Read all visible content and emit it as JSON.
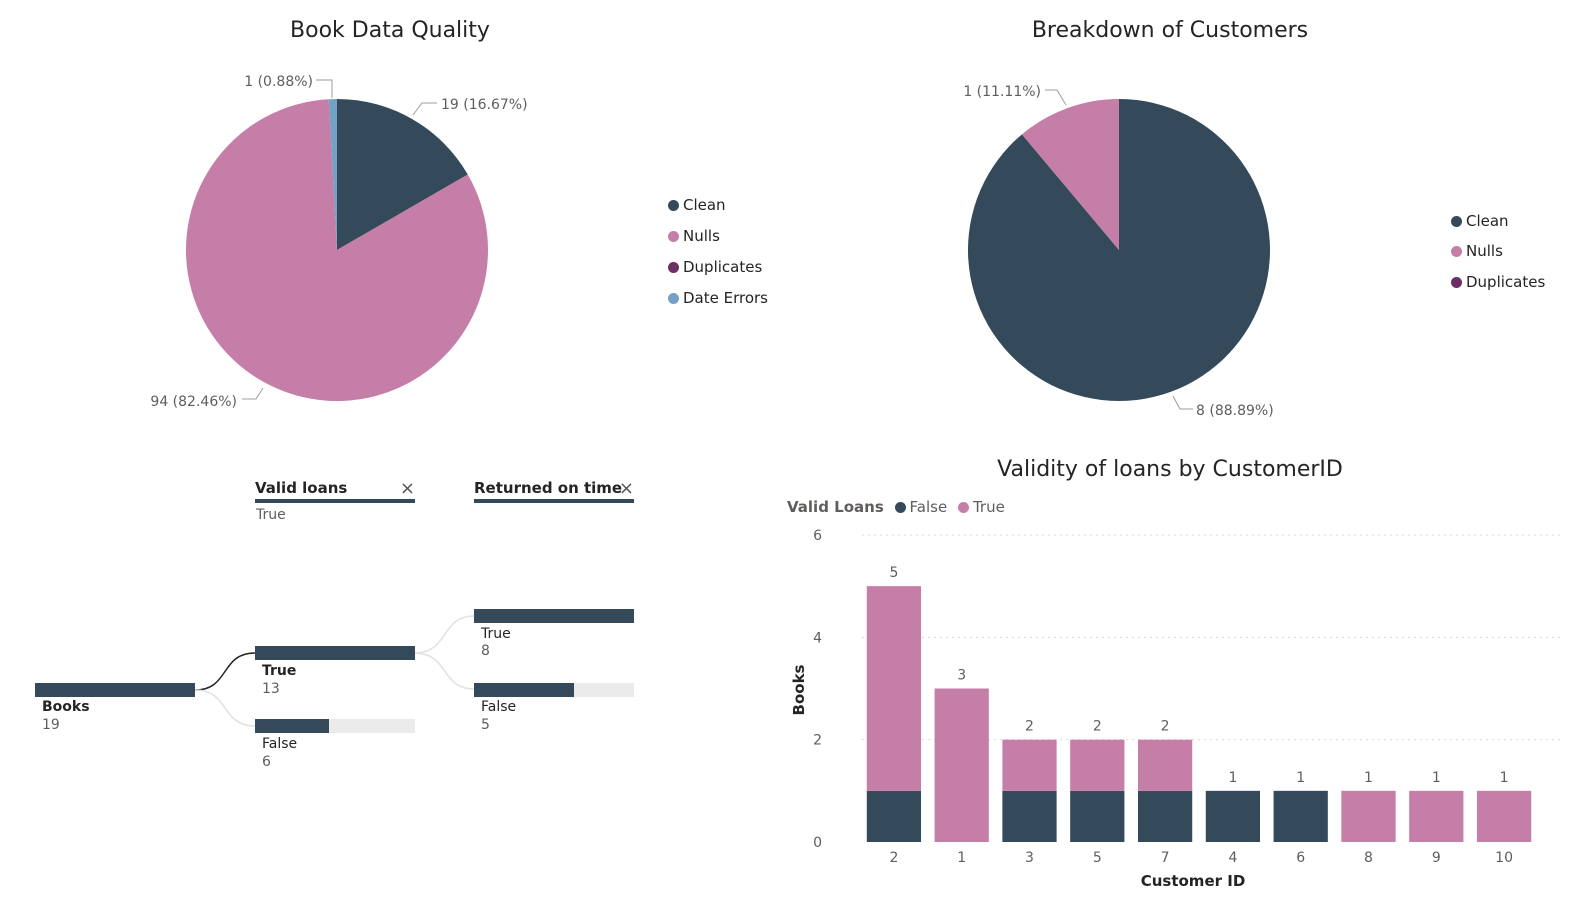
{
  "colors": {
    "clean": "#344a5a",
    "nulls": "#c57ea7",
    "duplicates": "#6b2f61",
    "date_errors": "#73a2c4"
  },
  "book_quality": {
    "title": "Book Data Quality",
    "legend": [
      "Clean",
      "Nulls",
      "Duplicates",
      "Date Errors"
    ],
    "labels": {
      "clean": "19 (16.67%)",
      "nulls": "94 (82.46%)",
      "date_errors": "1 (0.88%)"
    }
  },
  "customers": {
    "title": "Breakdown of Customers",
    "legend": [
      "Clean",
      "Nulls",
      "Duplicates"
    ],
    "labels": {
      "clean": "8 (88.89%)",
      "nulls": "1 (11.11%)"
    }
  },
  "tree": {
    "level1": {
      "header": "Valid loans",
      "filter": "True"
    },
    "level2": {
      "header": "Returned on time"
    },
    "root": {
      "label": "Books",
      "value": "19"
    },
    "valid_true": {
      "label": "True",
      "value": "13"
    },
    "valid_false": {
      "label": "False",
      "value": "6"
    },
    "returned_true": {
      "label": "True",
      "value": "8"
    },
    "returned_false": {
      "label": "False",
      "value": "5"
    },
    "close_icon": "×"
  },
  "loans_chart": {
    "title": "Validity of loans by CustomerID",
    "legend_title": "Valid Loans",
    "legend_false": "False",
    "legend_true": "True"
  },
  "chart_data": [
    {
      "type": "pie",
      "title": "Book Data Quality",
      "categories": [
        "Clean",
        "Nulls",
        "Duplicates",
        "Date Errors"
      ],
      "values": [
        19,
        94,
        0,
        1
      ],
      "percent": [
        16.67,
        82.46,
        0,
        0.88
      ],
      "legend_position": "right"
    },
    {
      "type": "pie",
      "title": "Breakdown of Customers",
      "categories": [
        "Clean",
        "Nulls",
        "Duplicates"
      ],
      "values": [
        8,
        1,
        0
      ],
      "percent": [
        88.89,
        11.11,
        0
      ],
      "legend_position": "right"
    },
    {
      "type": "bar",
      "stacked": true,
      "title": "Validity of loans by CustomerID",
      "xlabel": "Customer ID",
      "ylabel": "Books",
      "ylim": [
        0,
        6
      ],
      "yticks": [
        0,
        2,
        4,
        6
      ],
      "grid": true,
      "legend_position": "top-left",
      "categories": [
        "2",
        "1",
        "3",
        "5",
        "7",
        "4",
        "6",
        "8",
        "9",
        "10"
      ],
      "series": [
        {
          "name": "False",
          "values": [
            1,
            0,
            1,
            1,
            1,
            1,
            1,
            0,
            0,
            0
          ]
        },
        {
          "name": "True",
          "values": [
            4,
            3,
            1,
            1,
            1,
            0,
            0,
            1,
            1,
            1
          ]
        }
      ],
      "totals": [
        5,
        3,
        2,
        2,
        2,
        1,
        1,
        1,
        1,
        1
      ]
    },
    {
      "type": "decomposition_tree",
      "root": {
        "label": "Books",
        "value": 19
      },
      "valid_loans": [
        {
          "label": "True",
          "value": 13
        },
        {
          "label": "False",
          "value": 6
        }
      ],
      "returned_on_time": [
        {
          "label": "True",
          "value": 8
        },
        {
          "label": "False",
          "value": 5
        }
      ]
    }
  ]
}
